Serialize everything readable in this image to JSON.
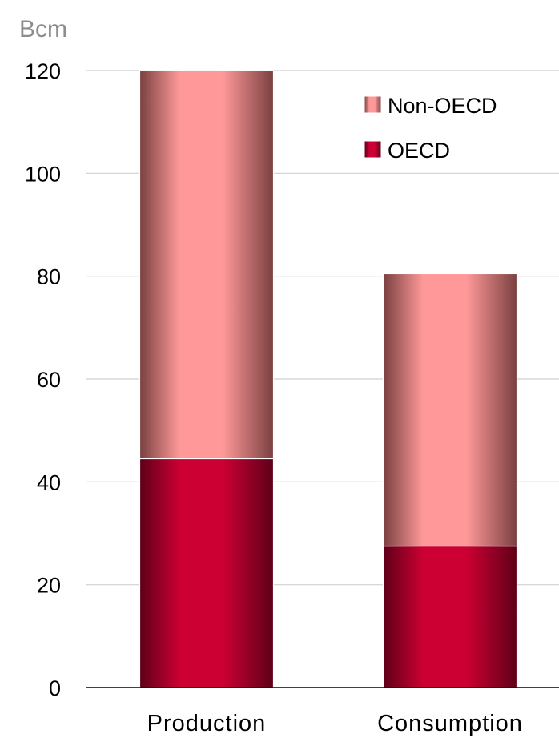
{
  "chart_data": {
    "type": "bar",
    "stacked": true,
    "categories": [
      "Production",
      "Consumption"
    ],
    "series": [
      {
        "name": "OECD",
        "values": [
          44.5,
          27.5
        ],
        "color": "#cc0033",
        "gradient_edge": "#5e0018"
      },
      {
        "name": "Non-OECD",
        "values": [
          75.5,
          53
        ],
        "color": "#ff9999",
        "gradient_edge": "#7a4040"
      }
    ],
    "unit_label": "Bcm",
    "ylim": [
      0,
      120
    ],
    "yticks": [
      0,
      20,
      40,
      60,
      80,
      100,
      120
    ],
    "grid": true,
    "legend_position": "top-right",
    "legend_order": [
      "Non-OECD",
      "OECD"
    ]
  }
}
